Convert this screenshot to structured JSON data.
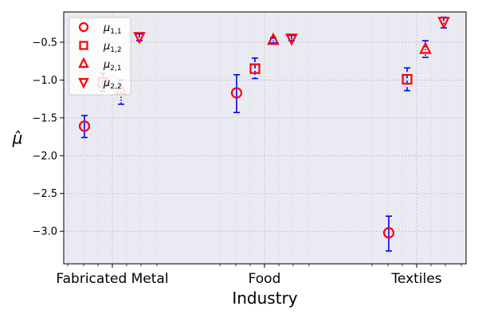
{
  "chart_data": {
    "type": "scatter",
    "title": "",
    "xlabel": "Industry",
    "ylabel": "μ̂",
    "categories": [
      "Fabricated Metal",
      "Food",
      "Textiles"
    ],
    "ylim": [
      -3.43,
      -0.1
    ],
    "yticks": [
      -3.0,
      -2.5,
      -2.0,
      -1.5,
      -1.0,
      -0.5
    ],
    "ytick_labels": [
      "−3.0",
      "−2.5",
      "−2.0",
      "−1.5",
      "−1.0",
      "−0.5"
    ],
    "grid": true,
    "legend_position": "top-left",
    "marker_color": "#ff0000",
    "errorbar_color": "#0000ff",
    "plot_background": "#eaeaf2",
    "series": [
      {
        "name": "μ1,1",
        "marker": "circle",
        "errorbar_style": "solid",
        "values": [
          -1.61,
          -1.17,
          -3.02
        ],
        "lower": [
          -1.76,
          -1.43,
          -3.26
        ],
        "upper": [
          -1.47,
          -0.93,
          -2.8
        ]
      },
      {
        "name": "μ1,2",
        "marker": "square",
        "errorbar_style": "dashed",
        "values": [
          -1.03,
          -0.85,
          -0.99
        ],
        "lower": [
          -1.15,
          -0.98,
          -1.14
        ],
        "upper": [
          -0.91,
          -0.71,
          -0.84
        ]
      },
      {
        "name": "μ2,1",
        "marker": "triangle-up",
        "errorbar_style": "dotted",
        "values": [
          -1.13,
          -0.47,
          -0.59
        ],
        "lower": [
          -1.32,
          -0.51,
          -0.7
        ],
        "upper": [
          -1.0,
          -0.44,
          -0.48
        ]
      },
      {
        "name": "μ2,2",
        "marker": "triangle-down",
        "errorbar_style": "dashdot",
        "values": [
          -0.43,
          -0.45,
          -0.23
        ],
        "lower": [
          -0.48,
          -0.48,
          -0.31
        ],
        "upper": [
          -0.39,
          -0.41,
          -0.17
        ]
      }
    ]
  }
}
